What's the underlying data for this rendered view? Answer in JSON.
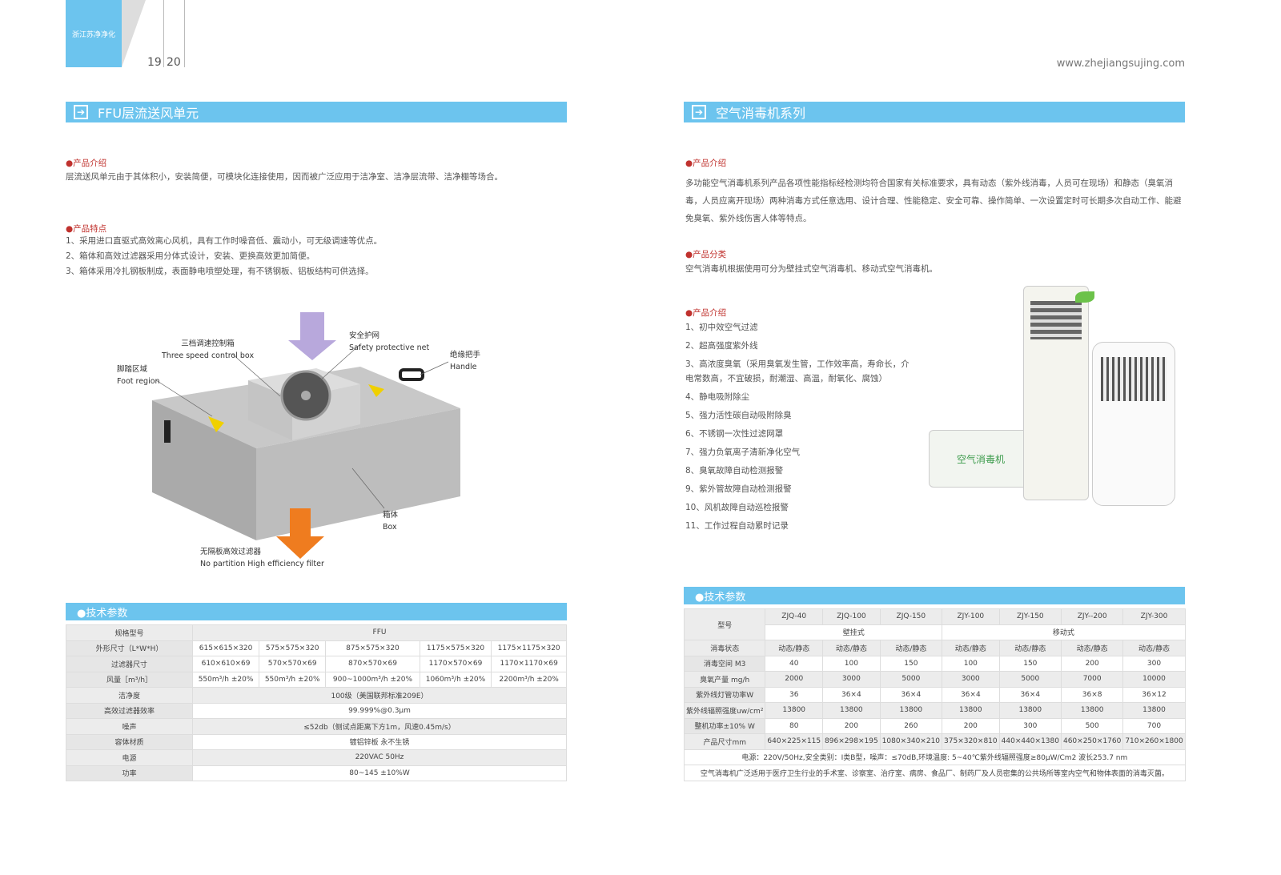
{
  "header": {
    "logo_text": "浙江苏净净化",
    "page_left": "19",
    "page_right": "20",
    "url": "www.zhejiangsujing.com"
  },
  "left": {
    "title": "FFU层流送风单元",
    "intro_heading": "●产品介绍",
    "intro_text": "层流送风单元由于其体积小，安装简便，可模块化连接使用，因而被广泛应用于洁净室、洁净层流带、洁净棚等场合。",
    "features_heading": "●产品特点",
    "features": [
      "1、采用进口直驱式高效离心风机，具有工作时噪音低、震动小，可无级调速等优点。",
      "2、箱体和高效过滤器采用分体式设计，安装、更换高效更加简便。",
      "3、箱体采用冷扎钢板制成，表面静电喷塑处理，有不锈钢板、铝板结构可供选择。"
    ],
    "diagram_labels": [
      {
        "cn": "三档调速控制箱",
        "en": "Three speed control box"
      },
      {
        "cn": "安全护网",
        "en": "Safety protective net"
      },
      {
        "cn": "绝缘把手",
        "en": "Handle"
      },
      {
        "cn": "脚踏区域",
        "en": "Foot region"
      },
      {
        "cn": "箱体",
        "en": "Box"
      },
      {
        "cn": "无隔板高效过滤器",
        "en": "No partition High efficiency filter"
      }
    ],
    "spec_heading": "●技术参数",
    "spec": {
      "model_label": "规格型号",
      "model": "FFU",
      "rows": [
        {
          "label": "外形尺寸（L*W*H）",
          "cells": [
            "615×615×320",
            "575×575×320",
            "875×575×320",
            "1175×575×320",
            "1175×1175×320"
          ]
        },
        {
          "label": "过滤器尺寸",
          "cells": [
            "610×610×69",
            "570×570×69",
            "870×570×69",
            "1170×570×69",
            "1170×1170×69"
          ]
        },
        {
          "label": "风量［m³/h］",
          "cells": [
            "550m³/h ±20%",
            "550m³/h ±20%",
            "900~1000m³/h ±20%",
            "1060m³/h ±20%",
            "2200m³/h ±20%"
          ]
        }
      ],
      "merged": [
        {
          "label": "洁净度",
          "value": "100级（美国联邦标准209E）"
        },
        {
          "label": "高效过滤器效率",
          "value": "99.999%@0.3μm"
        },
        {
          "label": "噪声",
          "value": "≤52db（侧试点距离下方1m，风速0.45m/s）"
        },
        {
          "label": "容体材质",
          "value": "镀铝锌板 永不生锈"
        },
        {
          "label": "电源",
          "value": "220VAC 50Hz"
        },
        {
          "label": "功率",
          "value": "80~145 ±10%W"
        }
      ]
    }
  },
  "right": {
    "title": "空气消毒机系列",
    "intro_heading": "●产品介绍",
    "intro_text": "多功能空气消毒机系列产品各项性能指标经检测均符合国家有关标准要求，具有动态（紫外线消毒，人员可在现场）和静态（臭氧消毒，人员应离开现场）两种消毒方式任意选用、设计合理、性能稳定、安全可靠、操作简单、一次设置定时可长期多次自动工作、能避免臭氧、紫外线伤害人体等特点。",
    "class_heading": "●产品分类",
    "class_text": "空气消毒机根据使用可分为壁挂式空气消毒机、移动式空气消毒机。",
    "features_heading": "●产品介绍",
    "features": [
      "1、初中效空气过滤",
      "2、超高强度紫外线",
      "3、高浓度臭氧（采用臭氧发生管，工作效率高，寿命长，介电常数高，不宜破损，耐潮湿、高温，耐氧化、腐蚀）",
      "4、静电吸附除尘",
      "5、强力活性碳自动吸附除臭",
      "6、不锈钢一次性过滤网罩",
      "7、强力负氧离子清新净化空气",
      "8、臭氧故障自动检测报警",
      "9、紫外管故障自动检测报警",
      "10、风机故障自动巡检报警",
      "11、工作过程自动累时记录"
    ],
    "product_label": "空气消毒机",
    "spec_heading": "●技术参数",
    "spec": {
      "model_label": "型号",
      "models": [
        "ZJQ-40",
        "ZJQ-100",
        "ZJQ-150",
        "ZJY-100",
        "ZJY-150",
        "ZJY--200",
        "ZJY-300"
      ],
      "group_wall": "壁挂式",
      "group_mobile": "移动式",
      "rows": [
        {
          "label": "消毒状态",
          "cells": [
            "动态/静态",
            "动态/静态",
            "动态/静态",
            "动态/静态",
            "动态/静态",
            "动态/静态",
            "动态/静态"
          ]
        },
        {
          "label": "消毒空间 M3",
          "cells": [
            "40",
            "100",
            "150",
            "100",
            "150",
            "200",
            "300"
          ]
        },
        {
          "label": "臭氧产量 mg/h",
          "cells": [
            "2000",
            "3000",
            "5000",
            "3000",
            "5000",
            "7000",
            "10000"
          ]
        },
        {
          "label": "紫外线灯管功率W",
          "cells": [
            "36",
            "36×4",
            "36×4",
            "36×4",
            "36×4",
            "36×8",
            "36×12"
          ]
        },
        {
          "label": "紫外线辐照强度uw/cm²",
          "cells": [
            "13800",
            "13800",
            "13800",
            "13800",
            "13800",
            "13800",
            "13800"
          ]
        },
        {
          "label": "整机功率±10% W",
          "cells": [
            "80",
            "200",
            "260",
            "200",
            "300",
            "500",
            "700"
          ]
        },
        {
          "label": "产品尺寸mm",
          "cells": [
            "640×225×115",
            "896×298×195",
            "1080×340×210",
            "375×320×810",
            "440×440×1380",
            "460×250×1760",
            "710×260×1800"
          ]
        }
      ],
      "note1": "电源：220V/50Hz,安全类别：I类B型，噪声：≤70dB,环境温度: 5~40℃紫外线辐照强度≥80μW/Cm2 波长253.7 nm",
      "note2": "空气消毒机广泛适用于医疗卫生行业的手术室、诊察室、治疗室、病房、食品厂、制药厂及人员密集的公共场所等室内空气和物体表面的消毒灭菌。"
    }
  }
}
